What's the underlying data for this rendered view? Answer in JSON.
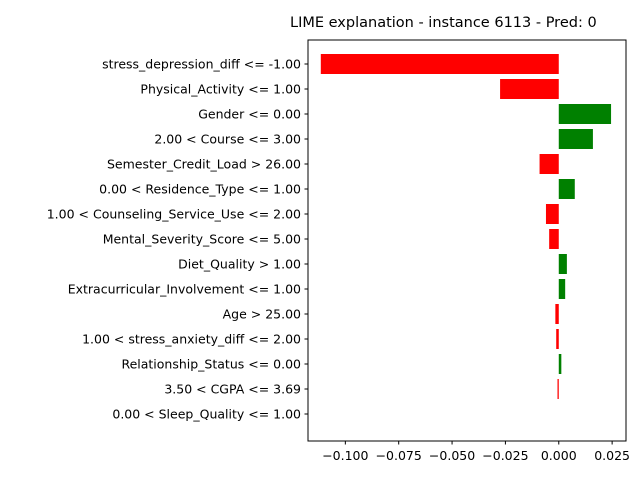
{
  "chart_data": {
    "type": "bar",
    "orientation": "horizontal",
    "title": "LIME explanation - instance 6113 - Pred: 0",
    "xlabel": "",
    "ylabel": "",
    "xlim": [
      -0.1175,
      0.0315
    ],
    "xticks": [
      -0.1,
      -0.075,
      -0.05,
      -0.025,
      0.0,
      0.025
    ],
    "xtick_labels": [
      "−0.100",
      "−0.075",
      "−0.050",
      "−0.025",
      "0.000",
      "0.025"
    ],
    "grid": false,
    "positive_color": "#008000",
    "negative_color": "#ff0000",
    "categories": [
      "stress_depression_diff <= -1.00",
      "Physical_Activity <= 1.00",
      "Gender <= 0.00",
      "2.00 < Course <= 3.00",
      "Semester_Credit_Load > 26.00",
      "0.00 < Residence_Type <= 1.00",
      "1.00 < Counseling_Service_Use <= 2.00",
      "Mental_Severity_Score <= 5.00",
      "Diet_Quality > 1.00",
      "Extracurricular_Involvement <= 1.00",
      "Age > 25.00",
      "1.00 < stress_anxiety_diff <= 2.00",
      "Relationship_Status <= 0.00",
      "3.50 < CGPA <= 3.69",
      "0.00 < Sleep_Quality <= 1.00"
    ],
    "values": [
      -0.1115,
      -0.0275,
      0.0245,
      0.016,
      -0.009,
      0.0075,
      -0.006,
      -0.0045,
      0.0038,
      0.003,
      -0.0016,
      -0.0012,
      0.0012,
      -0.0006,
      0.0
    ]
  }
}
